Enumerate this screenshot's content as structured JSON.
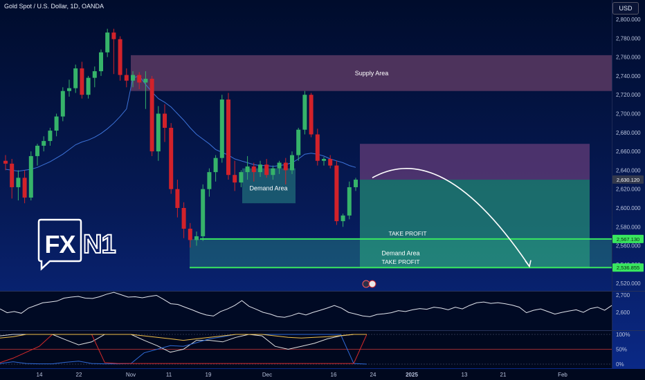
{
  "header": {
    "symbol_title": "Gold Spot / U.S. Dollar, 1D, OANDA",
    "currency_badge": "USD"
  },
  "logo": {
    "text": "FXN1",
    "brand_color": "#ffffff"
  },
  "colors": {
    "up": "#36b36a",
    "down": "#d2222a",
    "ma": "#3d73d9",
    "supply_zone": "#5a3a63",
    "demand_zone": "#2a8a86",
    "target_zone": "#2aa37d",
    "tp_line": "#39e75f"
  },
  "annotations": {
    "supply_area": "Supply Area",
    "demand_area_1": "Demand Area",
    "demand_area_2": "Demand Area",
    "take_profit_1": "TAKE PROFIT",
    "take_profit_2": "TAKE PROFIT"
  },
  "price_tags": {
    "current": "2,630.120",
    "tp1": "2,567.130",
    "tp2": "2,536.855"
  },
  "chart_data": {
    "type": "candlestick",
    "title": "Gold Spot / U.S. Dollar, 1D, OANDA",
    "y_axis": {
      "labels": [
        "2,800.000",
        "2,780.000",
        "2,760.000",
        "2,740.000",
        "2,720.000",
        "2,700.000",
        "2,680.000",
        "2,660.000",
        "2,640.000",
        "2,620.000",
        "2,600.000",
        "2,580.000",
        "2,560.000",
        "2,540.000",
        "2,520.000"
      ],
      "values": [
        2800,
        2780,
        2760,
        2740,
        2720,
        2700,
        2680,
        2660,
        2640,
        2620,
        2600,
        2580,
        2560,
        2540,
        2520
      ],
      "range": [
        2512,
        2810
      ]
    },
    "x_axis": {
      "labels": [
        "14",
        "22",
        "Nov",
        "11",
        "19",
        "Dec",
        "16",
        "24",
        "2025",
        "13",
        "21",
        "Feb"
      ]
    },
    "candles": [
      {
        "o": 2650,
        "h": 2656,
        "l": 2640,
        "c": 2647
      },
      {
        "o": 2647,
        "h": 2652,
        "l": 2610,
        "c": 2622
      },
      {
        "o": 2622,
        "h": 2640,
        "l": 2608,
        "c": 2632
      },
      {
        "o": 2632,
        "h": 2640,
        "l": 2605,
        "c": 2611
      },
      {
        "o": 2611,
        "h": 2660,
        "l": 2608,
        "c": 2655
      },
      {
        "o": 2655,
        "h": 2668,
        "l": 2645,
        "c": 2666
      },
      {
        "o": 2666,
        "h": 2676,
        "l": 2660,
        "c": 2671
      },
      {
        "o": 2671,
        "h": 2685,
        "l": 2666,
        "c": 2682
      },
      {
        "o": 2682,
        "h": 2700,
        "l": 2676,
        "c": 2697
      },
      {
        "o": 2697,
        "h": 2728,
        "l": 2692,
        "c": 2724
      },
      {
        "o": 2724,
        "h": 2736,
        "l": 2718,
        "c": 2727
      },
      {
        "o": 2727,
        "h": 2752,
        "l": 2722,
        "c": 2748
      },
      {
        "o": 2748,
        "h": 2755,
        "l": 2716,
        "c": 2720
      },
      {
        "o": 2720,
        "h": 2740,
        "l": 2716,
        "c": 2738
      },
      {
        "o": 2738,
        "h": 2750,
        "l": 2728,
        "c": 2745
      },
      {
        "o": 2745,
        "h": 2768,
        "l": 2740,
        "c": 2765
      },
      {
        "o": 2765,
        "h": 2790,
        "l": 2760,
        "c": 2786
      },
      {
        "o": 2786,
        "h": 2790,
        "l": 2742,
        "c": 2779
      },
      {
        "o": 2779,
        "h": 2782,
        "l": 2735,
        "c": 2741
      },
      {
        "o": 2741,
        "h": 2748,
        "l": 2728,
        "c": 2735
      },
      {
        "o": 2735,
        "h": 2745,
        "l": 2728,
        "c": 2741
      },
      {
        "o": 2741,
        "h": 2744,
        "l": 2726,
        "c": 2733
      },
      {
        "o": 2733,
        "h": 2745,
        "l": 2705,
        "c": 2737
      },
      {
        "o": 2737,
        "h": 2740,
        "l": 2655,
        "c": 2660
      },
      {
        "o": 2660,
        "h": 2708,
        "l": 2650,
        "c": 2700
      },
      {
        "o": 2700,
        "h": 2710,
        "l": 2670,
        "c": 2685
      },
      {
        "o": 2685,
        "h": 2690,
        "l": 2615,
        "c": 2620
      },
      {
        "o": 2620,
        "h": 2630,
        "l": 2590,
        "c": 2600
      },
      {
        "o": 2600,
        "h": 2606,
        "l": 2568,
        "c": 2578
      },
      {
        "o": 2578,
        "h": 2584,
        "l": 2558,
        "c": 2566
      },
      {
        "o": 2566,
        "h": 2575,
        "l": 2560,
        "c": 2570
      },
      {
        "o": 2570,
        "h": 2625,
        "l": 2565,
        "c": 2620
      },
      {
        "o": 2620,
        "h": 2642,
        "l": 2612,
        "c": 2638
      },
      {
        "o": 2638,
        "h": 2656,
        "l": 2628,
        "c": 2653
      },
      {
        "o": 2653,
        "h": 2720,
        "l": 2648,
        "c": 2715
      },
      {
        "o": 2715,
        "h": 2722,
        "l": 2630,
        "c": 2635
      },
      {
        "o": 2635,
        "h": 2650,
        "l": 2618,
        "c": 2627
      },
      {
        "o": 2627,
        "h": 2640,
        "l": 2622,
        "c": 2638
      },
      {
        "o": 2638,
        "h": 2655,
        "l": 2630,
        "c": 2644
      },
      {
        "o": 2644,
        "h": 2648,
        "l": 2628,
        "c": 2638
      },
      {
        "o": 2638,
        "h": 2650,
        "l": 2633,
        "c": 2646
      },
      {
        "o": 2646,
        "h": 2652,
        "l": 2632,
        "c": 2635
      },
      {
        "o": 2635,
        "h": 2645,
        "l": 2630,
        "c": 2642
      },
      {
        "o": 2642,
        "h": 2650,
        "l": 2636,
        "c": 2648
      },
      {
        "o": 2648,
        "h": 2653,
        "l": 2625,
        "c": 2640
      },
      {
        "o": 2640,
        "h": 2660,
        "l": 2636,
        "c": 2656
      },
      {
        "o": 2656,
        "h": 2685,
        "l": 2650,
        "c": 2683
      },
      {
        "o": 2683,
        "h": 2724,
        "l": 2678,
        "c": 2720
      },
      {
        "o": 2720,
        "h": 2722,
        "l": 2675,
        "c": 2678
      },
      {
        "o": 2678,
        "h": 2684,
        "l": 2645,
        "c": 2650
      },
      {
        "o": 2650,
        "h": 2654,
        "l": 2645,
        "c": 2652
      },
      {
        "o": 2652,
        "h": 2656,
        "l": 2642,
        "c": 2645
      },
      {
        "o": 2645,
        "h": 2650,
        "l": 2582,
        "c": 2586
      },
      {
        "o": 2586,
        "h": 2594,
        "l": 2580,
        "c": 2592
      },
      {
        "o": 2592,
        "h": 2628,
        "l": 2588,
        "c": 2622
      },
      {
        "o": 2622,
        "h": 2632,
        "l": 2618,
        "c": 2630
      }
    ],
    "moving_average": [
      2641,
      2640,
      2639,
      2640,
      2641,
      2643,
      2646,
      2649,
      2653,
      2657,
      2662,
      2667,
      2670,
      2672,
      2675,
      2679,
      2684,
      2690,
      2697,
      2705,
      2738,
      2740,
      2731,
      2723,
      2716,
      2712,
      2707,
      2700,
      2693,
      2685,
      2678,
      2673,
      2668,
      2662,
      2659,
      2656,
      2652,
      2650,
      2648,
      2646,
      2645,
      2645,
      2644,
      2645,
      2646,
      2648,
      2652,
      2657,
      2658,
      2657,
      2655,
      2652,
      2650,
      2648,
      2645,
      2643
    ],
    "zones": [
      {
        "name": "Supply Area",
        "top": 2762,
        "bottom": 2724
      },
      {
        "name": "Demand Area",
        "top": 2642,
        "bottom": 2605
      },
      {
        "name": "Demand Area",
        "top": 2567,
        "bottom": 2536
      },
      {
        "name": "target_upper",
        "top": 2668,
        "bottom": 2630
      },
      {
        "name": "target_lower",
        "top": 2630,
        "bottom": 2536
      }
    ],
    "levels": [
      {
        "label": "TAKE PROFIT",
        "value": 2567.13
      },
      {
        "label": "TAKE PROFIT",
        "value": 2536.855
      }
    ],
    "projection": {
      "from": 2632,
      "peak": 2644,
      "to": 2538
    },
    "oscillator_1": {
      "labels": [
        "2,700",
        "2,600"
      ],
      "values": [
        2700,
        2600
      ],
      "series": [
        2620,
        2598,
        2605,
        2595,
        2625,
        2640,
        2655,
        2660,
        2665,
        2682,
        2688,
        2692,
        2682,
        2680,
        2690,
        2705,
        2715,
        2702,
        2688,
        2690,
        2684,
        2692,
        2698,
        2675,
        2650,
        2646,
        2630,
        2615,
        2598,
        2585,
        2579,
        2605,
        2620,
        2640,
        2668,
        2635,
        2618,
        2600,
        2590,
        2576,
        2572,
        2582,
        2596,
        2585,
        2600,
        2612,
        2625,
        2640,
        2625,
        2600,
        2590,
        2580,
        2575,
        2588,
        2592,
        2598,
        2610,
        2605,
        2615,
        2622,
        2618,
        2630,
        2625,
        2615,
        2630,
        2620,
        2640,
        2655,
        2660,
        2652,
        2656,
        2650,
        2642,
        2630,
        2598,
        2612,
        2620,
        2605,
        2590,
        2600,
        2608,
        2615,
        2600,
        2622,
        2630,
        2612,
        2640
      ]
    },
    "oscillator_2": {
      "labels": [
        "100%",
        "50%",
        "0%"
      ],
      "values": [
        100,
        50,
        0
      ],
      "series": [
        {
          "color": "#e0e0e0",
          "values": [
            95,
            100,
            100,
            100,
            100,
            82,
            65,
            75,
            100,
            100,
            100,
            80,
            62,
            40,
            50,
            80,
            80,
            75,
            90,
            100,
            95,
            60,
            50,
            60,
            70,
            85,
            95,
            100,
            100
          ]
        },
        {
          "color": "#2f6ad6",
          "values": [
            2,
            8,
            2,
            1,
            1,
            6,
            10,
            2,
            1,
            1,
            2,
            38,
            50,
            62,
            60,
            72,
            85,
            92,
            100,
            100,
            100,
            100,
            100,
            100,
            100,
            100,
            100,
            2,
            0
          ]
        },
        {
          "color": "#d82a2a",
          "values": [
            5,
            20,
            40,
            60,
            100,
            100,
            100,
            100,
            5,
            2,
            2,
            2,
            2,
            2,
            2,
            2,
            2,
            2,
            2,
            2,
            2,
            2,
            2,
            2,
            2,
            2,
            2,
            2,
            100
          ]
        },
        {
          "color": "#f2c04a",
          "values": [
            88,
            92,
            100,
            100,
            100,
            100,
            100,
            100,
            100,
            100,
            100,
            95,
            90,
            85,
            80,
            85,
            90,
            95,
            100,
            100,
            100,
            95,
            90,
            88,
            90,
            92,
            96,
            100,
            100
          ]
        }
      ]
    }
  }
}
